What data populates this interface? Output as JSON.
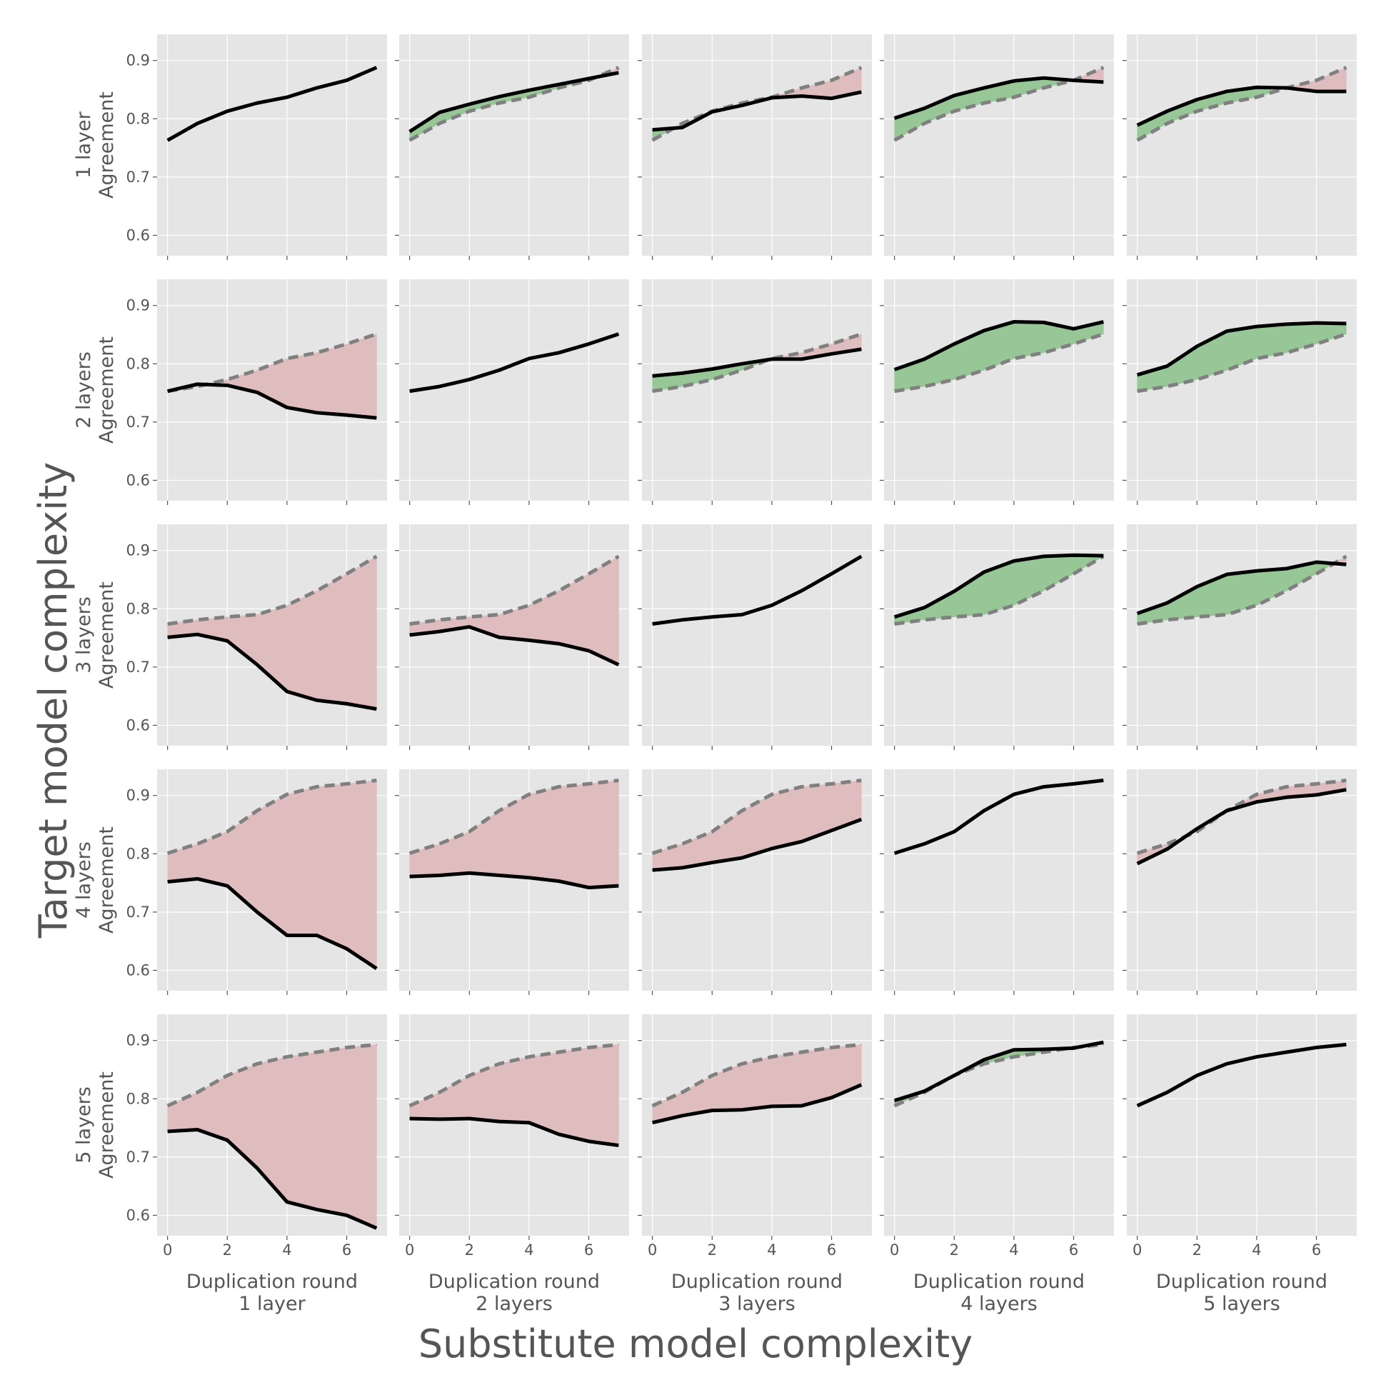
{
  "figure": {
    "supxlabel": "Substitute model complexity",
    "supylabel": "Target model complexity"
  },
  "chart_data": {
    "type": "line",
    "layout": "5x5 grid of subplots",
    "x": [
      0,
      1,
      2,
      3,
      4,
      5,
      6,
      7
    ],
    "xticks": [
      "0",
      "2",
      "4",
      "6"
    ],
    "yticks": [
      "0.6",
      "0.7",
      "0.8",
      "0.9"
    ],
    "ylim": [
      0.565,
      0.945
    ],
    "xlim": [
      -0.35,
      7.35
    ],
    "grid": true,
    "fill_colors": {
      "below_baseline": "#dfbcbe",
      "above_baseline": "#97c796"
    },
    "background": "#e5e5e5",
    "row_labels": [
      "1 layer\nAgreement",
      "2 layers\nAgreement",
      "3 layers\nAgreement",
      "4 layers\nAgreement",
      "5 layers\nAgreement"
    ],
    "col_labels": [
      "Duplication round\n1 layer",
      "Duplication round\n2 layers",
      "Duplication round\n3 layers",
      "Duplication round\n4 layers",
      "Duplication round\n5 layers"
    ],
    "baselines": [
      [
        0.763,
        0.792,
        0.813,
        0.827,
        0.837,
        0.853,
        0.866,
        0.888
      ],
      [
        0.753,
        0.761,
        0.773,
        0.789,
        0.809,
        0.819,
        0.834,
        0.851
      ],
      [
        0.774,
        0.781,
        0.786,
        0.79,
        0.806,
        0.831,
        0.86,
        0.89
      ],
      [
        0.801,
        0.817,
        0.838,
        0.874,
        0.902,
        0.915,
        0.92,
        0.926
      ],
      [
        0.788,
        0.811,
        0.84,
        0.86,
        0.872,
        0.88,
        0.888,
        0.893
      ]
    ],
    "series": [
      [
        [
          0.763,
          0.792,
          0.813,
          0.827,
          0.837,
          0.853,
          0.866,
          0.888
        ],
        [
          0.778,
          0.811,
          0.825,
          0.838,
          0.849,
          0.859,
          0.869,
          0.879
        ],
        [
          0.781,
          0.785,
          0.812,
          0.823,
          0.836,
          0.839,
          0.835,
          0.846
        ],
        [
          0.801,
          0.818,
          0.84,
          0.853,
          0.865,
          0.87,
          0.866,
          0.863
        ],
        [
          0.789,
          0.813,
          0.833,
          0.847,
          0.854,
          0.853,
          0.847,
          0.847
        ]
      ],
      [
        [
          0.753,
          0.765,
          0.763,
          0.751,
          0.725,
          0.716,
          0.712,
          0.707
        ],
        [
          0.753,
          0.761,
          0.773,
          0.789,
          0.809,
          0.819,
          0.834,
          0.851
        ],
        [
          0.779,
          0.784,
          0.791,
          0.8,
          0.808,
          0.808,
          0.817,
          0.825
        ],
        [
          0.79,
          0.808,
          0.834,
          0.857,
          0.872,
          0.871,
          0.86,
          0.872
        ],
        [
          0.781,
          0.796,
          0.83,
          0.856,
          0.864,
          0.868,
          0.87,
          0.869
        ]
      ],
      [
        [
          0.751,
          0.756,
          0.745,
          0.704,
          0.658,
          0.643,
          0.637,
          0.628
        ],
        [
          0.755,
          0.761,
          0.769,
          0.751,
          0.746,
          0.74,
          0.728,
          0.704
        ],
        [
          0.774,
          0.781,
          0.786,
          0.79,
          0.806,
          0.831,
          0.86,
          0.89
        ],
        [
          0.786,
          0.802,
          0.83,
          0.863,
          0.882,
          0.89,
          0.892,
          0.891
        ],
        [
          0.792,
          0.81,
          0.838,
          0.859,
          0.865,
          0.869,
          0.88,
          0.876
        ]
      ],
      [
        [
          0.752,
          0.757,
          0.745,
          0.7,
          0.66,
          0.66,
          0.637,
          0.603
        ],
        [
          0.761,
          0.763,
          0.767,
          0.763,
          0.759,
          0.753,
          0.742,
          0.745
        ],
        [
          0.772,
          0.776,
          0.785,
          0.793,
          0.809,
          0.821,
          0.84,
          0.859
        ],
        [
          0.801,
          0.817,
          0.838,
          0.874,
          0.902,
          0.915,
          0.92,
          0.926
        ],
        [
          0.783,
          0.808,
          0.843,
          0.874,
          0.889,
          0.897,
          0.901,
          0.91
        ]
      ],
      [
        [
          0.744,
          0.747,
          0.729,
          0.681,
          0.623,
          0.61,
          0.6,
          0.578
        ],
        [
          0.766,
          0.765,
          0.766,
          0.761,
          0.759,
          0.739,
          0.727,
          0.72
        ],
        [
          0.759,
          0.771,
          0.78,
          0.781,
          0.787,
          0.788,
          0.802,
          0.824
        ],
        [
          0.797,
          0.813,
          0.84,
          0.867,
          0.884,
          0.885,
          0.887,
          0.897
        ],
        [
          0.788,
          0.811,
          0.84,
          0.86,
          0.872,
          0.88,
          0.888,
          0.893
        ]
      ]
    ]
  }
}
